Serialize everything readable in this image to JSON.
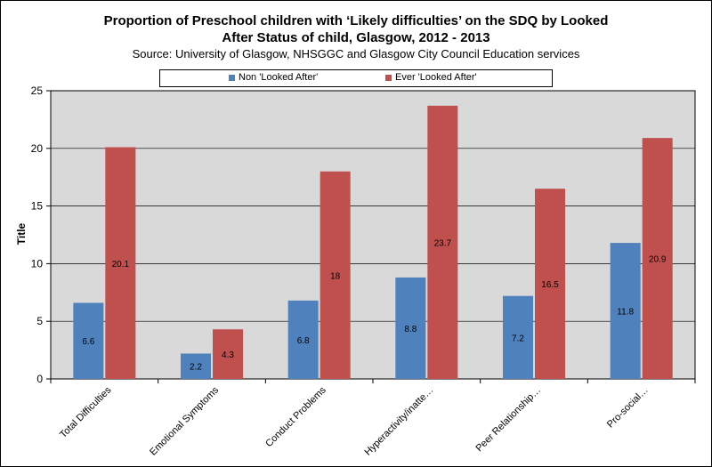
{
  "chart_data": {
    "type": "bar",
    "title_line1": "Proportion of Preschool children with ‘Likely difficulties’ on the SDQ by Looked",
    "title_line2": "After Status of child, Glasgow, 2012 - 2013",
    "subtitle": "Source: University of Glasgow, NHSGGC and Glasgow City Council Education services",
    "ylabel": "Title",
    "xlabel": "",
    "ylim": [
      0,
      25
    ],
    "yticks": [
      0,
      5,
      10,
      15,
      20,
      25
    ],
    "legend_position": "top",
    "categories": [
      "Total Difficulties",
      "Emotional Symptoms",
      "Conduct Problems",
      "Hyperactivity/inatte…",
      "Peer Relationship…",
      "Pro-social…"
    ],
    "series": [
      {
        "name": "Non 'Looked After'",
        "color": "#4f81bd",
        "values": [
          6.6,
          2.2,
          6.8,
          8.8,
          7.2,
          11.8
        ],
        "labels": [
          "6.6",
          "2.2",
          "6.8",
          "8.8",
          "7.2",
          "11.8"
        ]
      },
      {
        "name": "Ever 'Looked After'",
        "color": "#c0504d",
        "values": [
          20.1,
          4.3,
          18,
          23.7,
          16.5,
          20.9
        ],
        "labels": [
          "20.1",
          "4.3",
          "18",
          "23.7",
          "16.5",
          "20.9"
        ]
      }
    ]
  }
}
